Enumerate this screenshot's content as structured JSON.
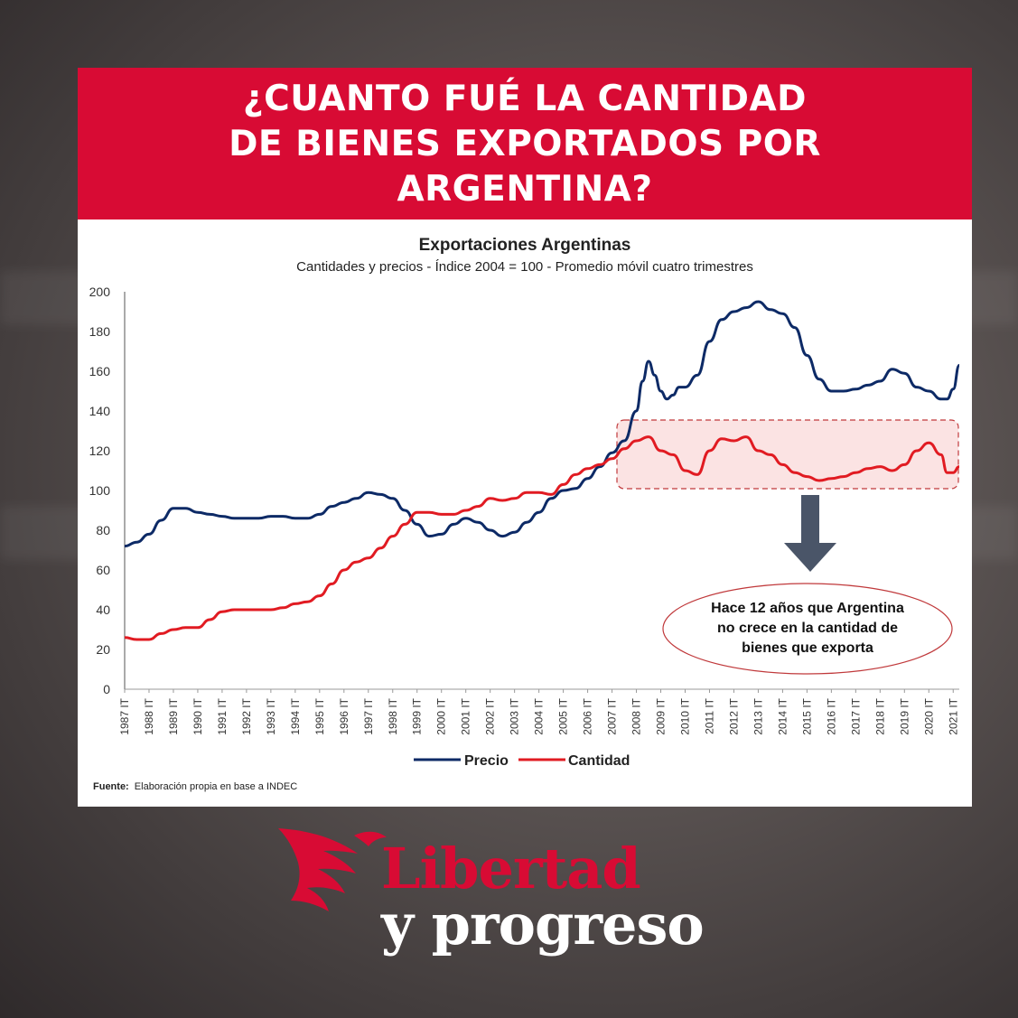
{
  "headline": {
    "line1": "¿CUANTO FUÉ LA CANTIDAD",
    "line2": "DE BIENES EXPORTADOS POR",
    "line3": "ARGENTINA?"
  },
  "colors": {
    "brand_red": "#d80b34",
    "precio": "#0d2a66",
    "cantidad": "#e11b22",
    "highlight_fill": "#fbe3e3",
    "arrow": "#4a5568"
  },
  "chart_data": {
    "type": "line",
    "title": "Exportaciones Argentinas",
    "subtitle": "Cantidades y precios - Índice 2004 = 100 - Promedio móvil cuatro trimestres",
    "xlabel": "",
    "ylabel": "",
    "ylim": [
      0,
      200
    ],
    "yticks": [
      0,
      20,
      40,
      60,
      80,
      100,
      120,
      140,
      160,
      180,
      200
    ],
    "categories": [
      "1987 IT",
      "1988 IT",
      "1989 IT",
      "1990 IT",
      "1991 IT",
      "1992 IT",
      "1993 IT",
      "1994 IT",
      "1995 IT",
      "1996 IT",
      "1997 IT",
      "1998 IT",
      "1999 IT",
      "2000 IT",
      "2001 IT",
      "2002 IT",
      "2003 IT",
      "2004 IT",
      "2005 IT",
      "2006 IT",
      "2007 IT",
      "2008 IT",
      "2009 IT",
      "2010 IT",
      "2011 IT",
      "2012 IT",
      "2013 IT",
      "2014 IT",
      "2015 IT",
      "2016 IT",
      "2017 IT",
      "2018 IT",
      "2019 IT",
      "2020 IT",
      "2021 IT"
    ],
    "x_start": 1987.0,
    "x_end": 2021.25,
    "legend_position": "bottom",
    "grid": false,
    "series": [
      {
        "name": "Precio",
        "color": "#0d2a66",
        "points": [
          [
            1987.0,
            72
          ],
          [
            1987.5,
            74
          ],
          [
            1988.0,
            78
          ],
          [
            1988.5,
            85
          ],
          [
            1989.0,
            91
          ],
          [
            1989.5,
            91
          ],
          [
            1990.0,
            89
          ],
          [
            1990.5,
            88
          ],
          [
            1991.0,
            87
          ],
          [
            1991.5,
            86
          ],
          [
            1992.0,
            86
          ],
          [
            1992.5,
            86
          ],
          [
            1993.0,
            87
          ],
          [
            1993.5,
            87
          ],
          [
            1994.0,
            86
          ],
          [
            1994.5,
            86
          ],
          [
            1995.0,
            88
          ],
          [
            1995.5,
            92
          ],
          [
            1996.0,
            94
          ],
          [
            1996.5,
            96
          ],
          [
            1997.0,
            99
          ],
          [
            1997.5,
            98
          ],
          [
            1998.0,
            96
          ],
          [
            1998.5,
            90
          ],
          [
            1999.0,
            83
          ],
          [
            1999.5,
            77
          ],
          [
            2000.0,
            78
          ],
          [
            2000.5,
            83
          ],
          [
            2001.0,
            86
          ],
          [
            2001.5,
            84
          ],
          [
            2002.0,
            80
          ],
          [
            2002.5,
            77
          ],
          [
            2003.0,
            79
          ],
          [
            2003.5,
            84
          ],
          [
            2004.0,
            89
          ],
          [
            2004.5,
            96
          ],
          [
            2005.0,
            100
          ],
          [
            2005.5,
            101
          ],
          [
            2006.0,
            106
          ],
          [
            2006.5,
            112
          ],
          [
            2007.0,
            119
          ],
          [
            2007.5,
            125
          ],
          [
            2008.0,
            140
          ],
          [
            2008.25,
            155
          ],
          [
            2008.5,
            165
          ],
          [
            2008.75,
            158
          ],
          [
            2009.0,
            150
          ],
          [
            2009.25,
            146
          ],
          [
            2009.5,
            148
          ],
          [
            2009.75,
            152
          ],
          [
            2010.0,
            152
          ],
          [
            2010.5,
            158
          ],
          [
            2011.0,
            175
          ],
          [
            2011.5,
            186
          ],
          [
            2012.0,
            190
          ],
          [
            2012.5,
            192
          ],
          [
            2013.0,
            195
          ],
          [
            2013.5,
            191
          ],
          [
            2014.0,
            189
          ],
          [
            2014.5,
            182
          ],
          [
            2015.0,
            168
          ],
          [
            2015.5,
            156
          ],
          [
            2016.0,
            150
          ],
          [
            2016.5,
            150
          ],
          [
            2017.0,
            151
          ],
          [
            2017.5,
            153
          ],
          [
            2018.0,
            155
          ],
          [
            2018.5,
            161
          ],
          [
            2019.0,
            159
          ],
          [
            2019.5,
            152
          ],
          [
            2020.0,
            150
          ],
          [
            2020.5,
            146
          ],
          [
            2020.75,
            146
          ],
          [
            2021.0,
            151
          ],
          [
            2021.25,
            163
          ]
        ]
      },
      {
        "name": "Cantidad",
        "color": "#e11b22",
        "points": [
          [
            1987.0,
            26
          ],
          [
            1987.5,
            25
          ],
          [
            1988.0,
            25
          ],
          [
            1988.5,
            28
          ],
          [
            1989.0,
            30
          ],
          [
            1989.5,
            31
          ],
          [
            1990.0,
            31
          ],
          [
            1990.5,
            35
          ],
          [
            1991.0,
            39
          ],
          [
            1991.5,
            40
          ],
          [
            1992.0,
            40
          ],
          [
            1992.5,
            40
          ],
          [
            1993.0,
            40
          ],
          [
            1993.5,
            41
          ],
          [
            1994.0,
            43
          ],
          [
            1994.5,
            44
          ],
          [
            1995.0,
            47
          ],
          [
            1995.5,
            53
          ],
          [
            1996.0,
            60
          ],
          [
            1996.5,
            64
          ],
          [
            1997.0,
            66
          ],
          [
            1997.5,
            71
          ],
          [
            1998.0,
            77
          ],
          [
            1998.5,
            83
          ],
          [
            1999.0,
            89
          ],
          [
            1999.5,
            89
          ],
          [
            2000.0,
            88
          ],
          [
            2000.5,
            88
          ],
          [
            2001.0,
            90
          ],
          [
            2001.5,
            92
          ],
          [
            2002.0,
            96
          ],
          [
            2002.5,
            95
          ],
          [
            2003.0,
            96
          ],
          [
            2003.5,
            99
          ],
          [
            2004.0,
            99
          ],
          [
            2004.5,
            98
          ],
          [
            2005.0,
            103
          ],
          [
            2005.5,
            108
          ],
          [
            2006.0,
            111
          ],
          [
            2006.5,
            113
          ],
          [
            2007.0,
            116
          ],
          [
            2007.5,
            121
          ],
          [
            2008.0,
            125
          ],
          [
            2008.5,
            127
          ],
          [
            2009.0,
            120
          ],
          [
            2009.5,
            118
          ],
          [
            2010.0,
            110
          ],
          [
            2010.5,
            108
          ],
          [
            2011.0,
            120
          ],
          [
            2011.5,
            126
          ],
          [
            2012.0,
            125
          ],
          [
            2012.5,
            127
          ],
          [
            2013.0,
            120
          ],
          [
            2013.5,
            118
          ],
          [
            2014.0,
            113
          ],
          [
            2014.5,
            109
          ],
          [
            2015.0,
            107
          ],
          [
            2015.5,
            105
          ],
          [
            2016.0,
            106
          ],
          [
            2016.5,
            107
          ],
          [
            2017.0,
            109
          ],
          [
            2017.5,
            111
          ],
          [
            2018.0,
            112
          ],
          [
            2018.5,
            110
          ],
          [
            2019.0,
            113
          ],
          [
            2019.5,
            120
          ],
          [
            2020.0,
            124
          ],
          [
            2020.5,
            118
          ],
          [
            2020.75,
            109
          ],
          [
            2021.0,
            109
          ],
          [
            2021.25,
            112
          ]
        ]
      }
    ],
    "annotation": {
      "line1": "Hace 12 años que Argentina",
      "line2": "no crece en la cantidad de",
      "line3": "bienes que exporta"
    },
    "source_label": "Fuente:",
    "source_text": "Elaboración propia en base a INDEC"
  },
  "logo": {
    "word1": "Libertad",
    "word2": "y progreso"
  }
}
